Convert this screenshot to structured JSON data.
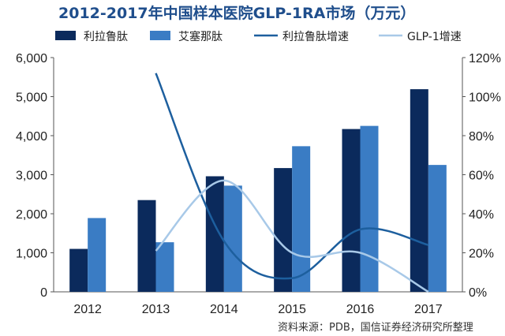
{
  "title": "2012-2017年中国样本医院GLP-1RA市场（万元）",
  "source": "资料来源：PDB，国信证券经济研究所整理",
  "chart_data": {
    "type": "bar",
    "categories": [
      "2012",
      "2013",
      "2014",
      "2015",
      "2016",
      "2017"
    ],
    "series": [
      {
        "name": "利拉鲁肽",
        "kind": "bar",
        "axis": "left",
        "color": "#0b2a5c",
        "values": [
          1100,
          2350,
          2960,
          3170,
          4170,
          5190
        ]
      },
      {
        "name": "艾塞那肽",
        "kind": "bar",
        "axis": "left",
        "color": "#3a7cc4",
        "values": [
          1890,
          1270,
          2720,
          3730,
          4250,
          3250
        ]
      },
      {
        "name": "利拉鲁肽增速",
        "kind": "line",
        "axis": "right",
        "color": "#1d5f9e",
        "values": [
          null,
          112,
          26,
          7,
          32,
          24
        ]
      },
      {
        "name": "GLP-1增速",
        "kind": "line",
        "axis": "right",
        "color": "#a8c9e8",
        "values": [
          null,
          21,
          57,
          20,
          20,
          0
        ]
      }
    ],
    "y_left": {
      "min": 0,
      "max": 6000,
      "ticks": [
        "0",
        "1,000",
        "2,000",
        "3,000",
        "4,000",
        "5,000",
        "6,000"
      ]
    },
    "y_right": {
      "min": 0,
      "max": 120,
      "ticks": [
        "0%",
        "20%",
        "40%",
        "60%",
        "80%",
        "100%",
        "120%"
      ]
    },
    "legend_position": "top",
    "grid": false
  }
}
